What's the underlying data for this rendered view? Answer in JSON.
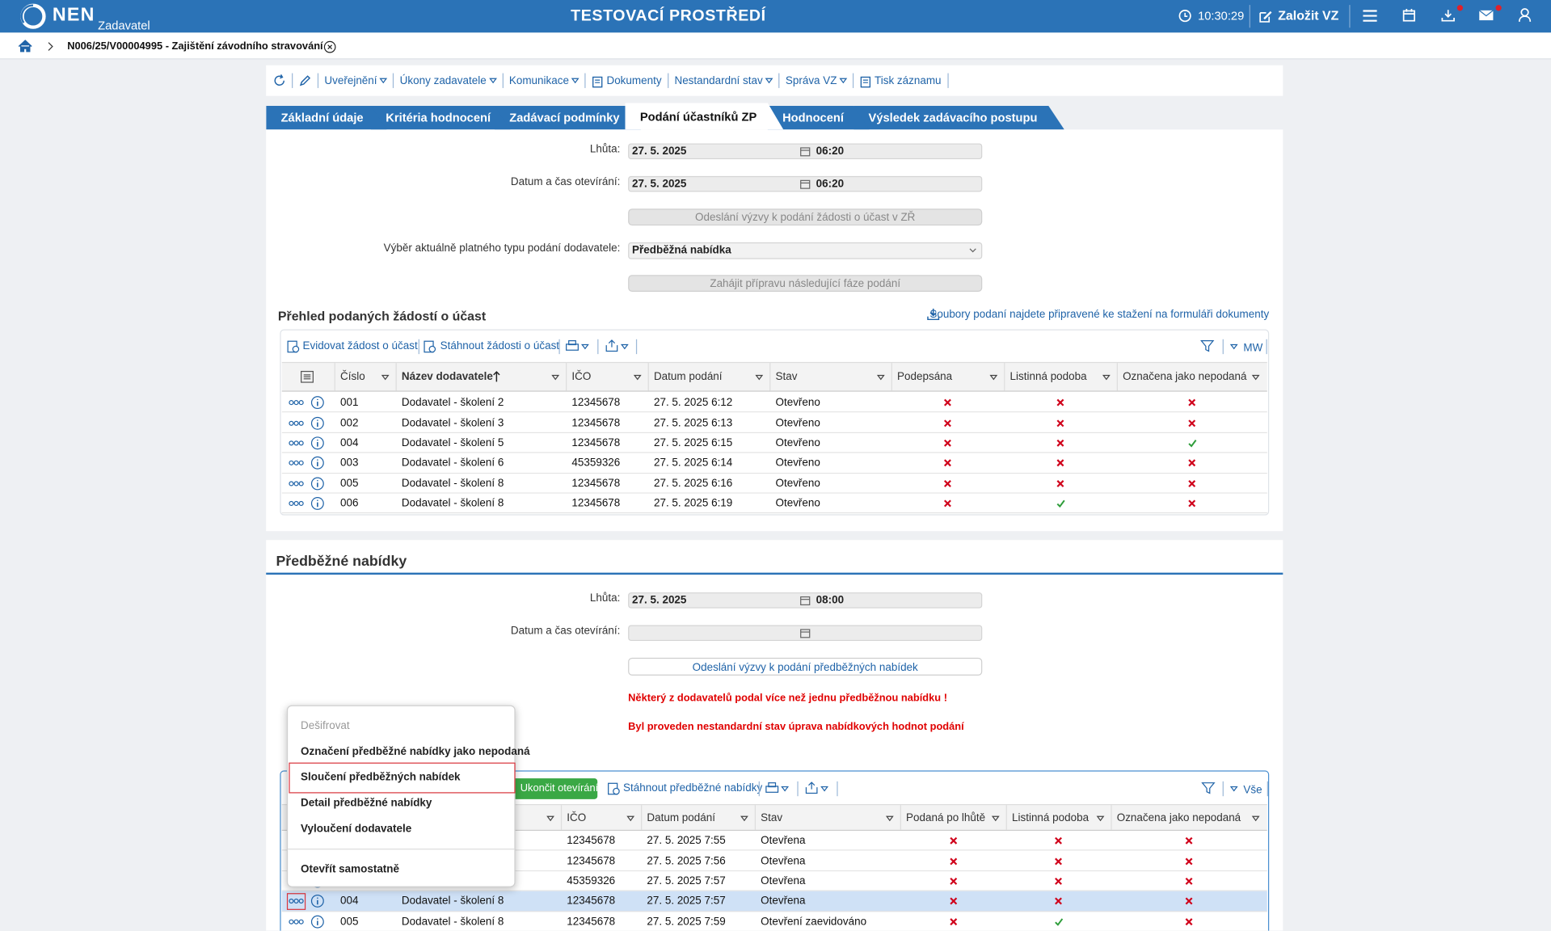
{
  "header": {
    "logo": "NEN",
    "role": "Zadavatel",
    "title": "TESTOVACÍ PROSTŘEDÍ",
    "time": "10:30:29",
    "create_button": "Založit VZ"
  },
  "breadcrumb": {
    "item": "N006/25/V00004995 - Zajištění závodního stravování"
  },
  "toolbar": {
    "items": [
      "Uveřejnění",
      "Úkony zadavatele",
      "Komunikace",
      "Dokumenty",
      "Nestandardní stav",
      "Správa VZ",
      "Tisk záznamu"
    ]
  },
  "tabs": {
    "items": [
      "Základní údaje",
      "Kritéria hodnocení",
      "Zadávací podmínky",
      "Podání účastníků ZP",
      "Hodnocení",
      "Výsledek zadávacího postupu"
    ],
    "active": 3
  },
  "submissions": {
    "fields": [
      {
        "label": "Lhůta:",
        "date": "27. 5. 2025",
        "time": "06:20"
      },
      {
        "label": "Datum a čas otevírání:",
        "date": "27. 5. 2025",
        "time": "06:20"
      }
    ],
    "send_button": "Odeslání výzvy k podání žádosti o účast v ZŘ",
    "type_label": "Výběr aktuálně platného typu podání dodavatele:",
    "type_value": "Předběžná nabídka",
    "next_phase_button": "Zahájit přípravu následující fáze podání"
  },
  "table1": {
    "title": "Přehled podaných žádostí o účast",
    "download_link": "Soubory podaní najdete připravené ke stažení na formuláři dokumenty",
    "actions": [
      "Evidovat žádost o účast",
      "Stáhnout žádosti o účast"
    ],
    "filter": "MW",
    "columns": [
      "Číslo",
      "Název dodavatele",
      "IČO",
      "Datum podání",
      "Stav",
      "Podepsána",
      "Listinná podoba",
      "Označena jako nepodaná"
    ],
    "rows": [
      [
        "001",
        "Dodavatel - školení 2",
        "12345678",
        "27. 5. 2025 6:12",
        "Otevřeno",
        false,
        false,
        false
      ],
      [
        "002",
        "Dodavatel - školení 3",
        "12345678",
        "27. 5. 2025 6:13",
        "Otevřeno",
        false,
        false,
        false
      ],
      [
        "004",
        "Dodavatel - školení 5",
        "12345678",
        "27. 5. 2025 6:15",
        "Otevřeno",
        false,
        false,
        true
      ],
      [
        "003",
        "Dodavatel - školení 6",
        "45359326",
        "27. 5. 2025 6:14",
        "Otevřeno",
        false,
        false,
        false
      ],
      [
        "005",
        "Dodavatel - školení 8",
        "12345678",
        "27. 5. 2025 6:16",
        "Otevřeno",
        false,
        false,
        false
      ],
      [
        "006",
        "Dodavatel - školení 8",
        "12345678",
        "27. 5. 2025 6:19",
        "Otevřeno",
        false,
        true,
        false
      ]
    ]
  },
  "section2": {
    "title": "Předběžné nabídky",
    "fields": [
      {
        "label": "Lhůta:",
        "date": "27. 5. 2025",
        "time": "08:00"
      },
      {
        "label": "Datum a čas otevírání:"
      }
    ],
    "send_button": "Odeslání výzvy k podání předběžných nabídek",
    "warnings": [
      "Některý z dodavatelů podal více než jednu předběžnou nabídku !",
      "Byl proveden nestandardní stav úprava nabídkových hodnot podání"
    ]
  },
  "table2": {
    "actions": [
      "Ukončit otevírání",
      "Stáhnout předběžné nabídky"
    ],
    "filter": "Vše",
    "columns": [
      null,
      null,
      "IČO",
      "Datum podání",
      "Stav",
      "Podaná po lhůtě",
      "Listinná podoba",
      "Označena jako nepodaná"
    ],
    "rows": [
      [
        null,
        null,
        "12345678",
        "27. 5. 2025 7:55",
        "Otevřena",
        false,
        false,
        false
      ],
      [
        null,
        null,
        "12345678",
        "27. 5. 2025 7:56",
        "Otevřena",
        false,
        false,
        false
      ],
      [
        null,
        null,
        "45359326",
        "27. 5. 2025 7:57",
        "Otevřena",
        false,
        false,
        false
      ],
      [
        "004",
        "Dodavatel - školení 8",
        "12345678",
        "27. 5. 2025 7:57",
        "Otevřena",
        false,
        false,
        false
      ],
      [
        "005",
        "Dodavatel - školení 8",
        "12345678",
        "27. 5. 2025 7:59",
        "Otevření zaevidováno",
        false,
        true,
        false
      ]
    ],
    "selected_row": 3
  },
  "context_menu": {
    "items": [
      "Dešifrovat",
      "Označení předběžné nabídky jako nepodaná",
      "Sloučení předběžných nabídek",
      "Detail předběžné nabídky",
      "Vyloučení dodavatele",
      "Otevřít samostatně"
    ],
    "disabled": [
      0
    ],
    "highlighted": 2
  }
}
